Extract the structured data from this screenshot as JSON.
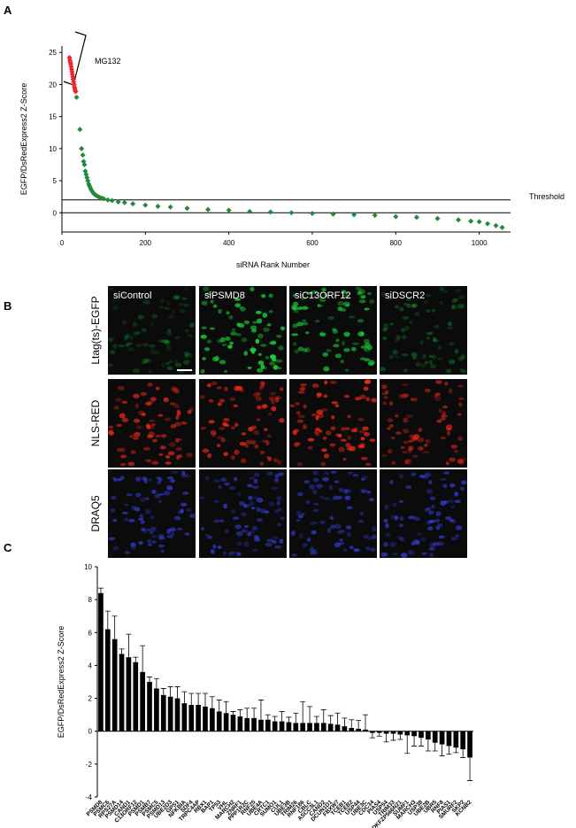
{
  "figure": {
    "panels": [
      "A",
      "B",
      "C"
    ],
    "images": {
      "columns": [
        "siControl",
        "siPSMD8",
        "siC13ORF12",
        "siDSCR2"
      ],
      "rows": [
        "Ltag(ts)-EGFP",
        "NLS-RED",
        "DRAQ5"
      ]
    }
  },
  "chart_data": [
    {
      "type": "scatter",
      "ylabel": "EGFP/DsRedExpress2  Z-Score",
      "xlabel": "siRNA Rank Number",
      "xlim": [
        0,
        1075
      ],
      "ylim": [
        -3,
        26
      ],
      "xticks": [
        0,
        200,
        400,
        600,
        800,
        1000
      ],
      "yticks": [
        0,
        5,
        10,
        15,
        20,
        25
      ],
      "threshold": {
        "value": 2,
        "label": "Threshold"
      },
      "annotation": "MG132",
      "series": [
        {
          "color": "#e8262b",
          "x": [
            18,
            19,
            20,
            21,
            22,
            23,
            24,
            25,
            26,
            27,
            28,
            29,
            30,
            31,
            32,
            33
          ],
          "values": [
            24.2,
            23.8,
            23.5,
            23.2,
            22.8,
            22.4,
            22,
            21.6,
            21.2,
            20.8,
            20.4,
            20,
            19.6,
            19.3,
            19,
            18.9
          ]
        },
        {
          "color": "#1f8a3b",
          "x": [
            35,
            43,
            47,
            50,
            52,
            54,
            56,
            58,
            60,
            62,
            64,
            66,
            68,
            70,
            73,
            76,
            80,
            85,
            90,
            95,
            100,
            110,
            120,
            135,
            150,
            170,
            200,
            230,
            260,
            300,
            350,
            400,
            450,
            500,
            550,
            600,
            650,
            700,
            750,
            800,
            850,
            900,
            950,
            980,
            1000,
            1020,
            1040,
            1055
          ],
          "values": [
            18,
            13,
            10,
            9,
            8,
            7.5,
            6.5,
            6,
            5.5,
            5,
            4.5,
            4.2,
            3.9,
            3.6,
            3.3,
            3,
            2.8,
            2.6,
            2.4,
            2.3,
            2.2,
            2,
            1.9,
            1.7,
            1.6,
            1.4,
            1.2,
            1,
            0.9,
            0.7,
            0.5,
            0.4,
            0.2,
            0.1,
            0,
            -0.1,
            -0.2,
            -0.3,
            -0.4,
            -0.6,
            -0.7,
            -0.9,
            -1.1,
            -1.3,
            -1.4,
            -1.7,
            -2,
            -2.3
          ]
        }
      ]
    },
    {
      "type": "bar",
      "ylabel": "EGFP/DsRedExpress2  Z-Score",
      "ylim": [
        -4,
        10
      ],
      "yticks": [
        -4,
        -2,
        0,
        2,
        4,
        6,
        8,
        10
      ],
      "color": "#000000",
      "categories": [
        "PSMD8",
        "PSMC6",
        "RPS27A",
        "PSMD14",
        "CAND1",
        "C13ORF12",
        "PSMD1",
        "PSMB7",
        "PSMC5",
        "PSMD13",
        "UBE2D3",
        "GPS1",
        "NFKBIA",
        "SDF4",
        "TRPC4AP",
        "RBX1",
        "BAP1",
        "TP53",
        "VHL",
        "MARCH2",
        "ZNRF1",
        "PPP1R2C",
        "RNF25",
        "UBE4A",
        "CRTC1",
        "SUMO1",
        "CUL1",
        "UBE3B",
        "TRIM26",
        "RNF186",
        "CBLC",
        "ASCC3L1",
        "CAND2",
        "DCUN1D1",
        "FBXW7",
        "TCEB1",
        "TCEB2",
        "USP44",
        "UBE3C",
        "CDC34",
        "PIAS4",
        "USP54",
        "TRIM33",
        "DKFZP566N21",
        "SUMF1",
        "MARCH3",
        "USP38",
        "UBE2B",
        "UBR5",
        "RNF8",
        "PIAS1",
        "SMURF2",
        "SKP2",
        "KCNB2"
      ],
      "values": [
        8.4,
        6.2,
        5.6,
        4.7,
        4.5,
        4.2,
        3.6,
        3.0,
        2.6,
        2.2,
        2.1,
        2.0,
        1.7,
        1.6,
        1.6,
        1.5,
        1.4,
        1.2,
        1.1,
        1.0,
        0.9,
        0.8,
        0.8,
        0.7,
        0.7,
        0.6,
        0.6,
        0.55,
        0.5,
        0.5,
        0.5,
        0.5,
        0.5,
        0.45,
        0.4,
        0.3,
        0.2,
        0.15,
        0.1,
        -0.1,
        -0.1,
        -0.15,
        -0.15,
        -0.2,
        -0.25,
        -0.3,
        -0.4,
        -0.5,
        -0.7,
        -0.8,
        -0.9,
        -1.0,
        -1.1,
        -1.6
      ],
      "errors": [
        0.3,
        1.1,
        1.4,
        0.3,
        1.4,
        0.3,
        1.6,
        0.3,
        0.6,
        0.4,
        0.6,
        0.7,
        0.7,
        0.7,
        0.7,
        0.8,
        0.7,
        0.7,
        0.7,
        0.2,
        0.4,
        0.6,
        0.6,
        1.2,
        0.3,
        0.3,
        0.6,
        0.3,
        0.6,
        1.3,
        1.0,
        0.4,
        0.8,
        0.5,
        0.7,
        0.5,
        0.5,
        0.5,
        0.9,
        0.3,
        0.2,
        0.5,
        0.4,
        0.3,
        1.1,
        0.6,
        0.5,
        0.7,
        0.5,
        0.7,
        0.5,
        0.3,
        0.5,
        1.4
      ]
    }
  ]
}
